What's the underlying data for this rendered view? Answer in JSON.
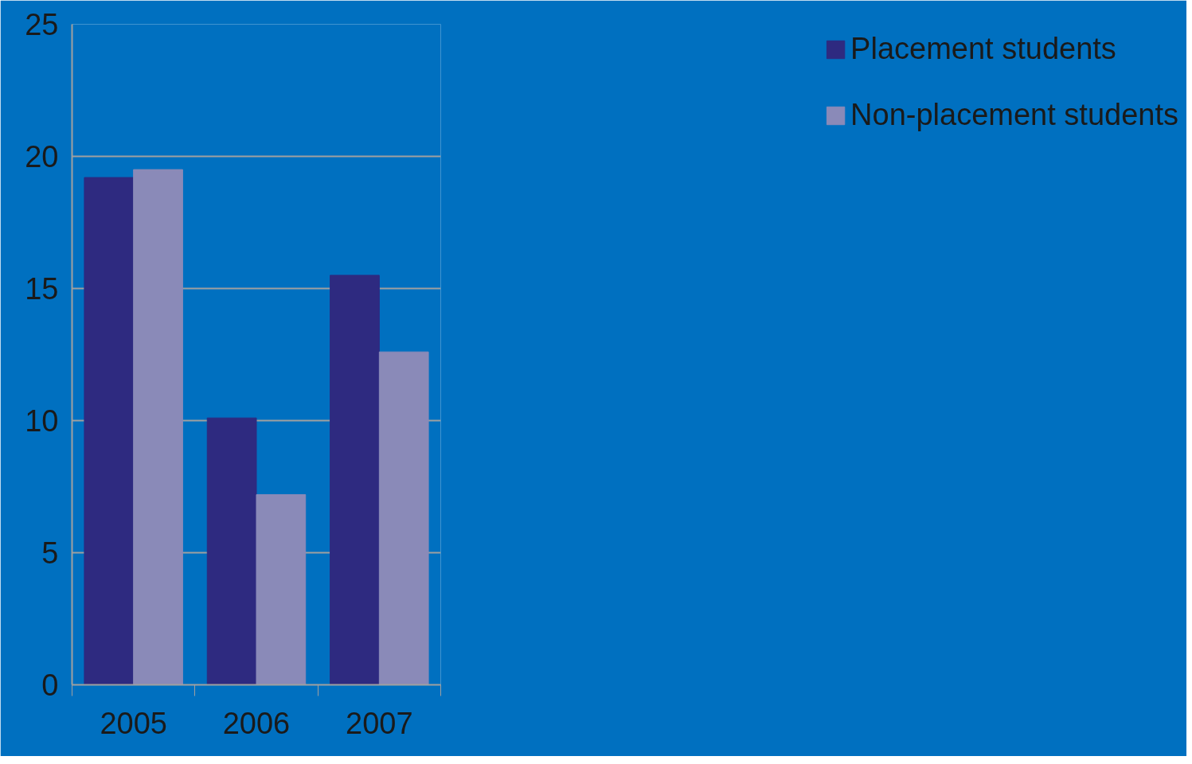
{
  "chart_data": {
    "type": "bar",
    "categories": [
      "2005",
      "2006",
      "2007"
    ],
    "series": [
      {
        "name": "Placement students",
        "color": "#2e2a80",
        "values": [
          19.2,
          10.1,
          15.5
        ]
      },
      {
        "name": "Non-placement students",
        "color": "#8a8ab8",
        "values": [
          19.5,
          7.2,
          12.6
        ]
      }
    ],
    "ylim": [
      0,
      25
    ],
    "yticks": [
      0,
      5,
      10,
      15,
      20,
      25
    ],
    "grid": "y",
    "legend": "right"
  }
}
